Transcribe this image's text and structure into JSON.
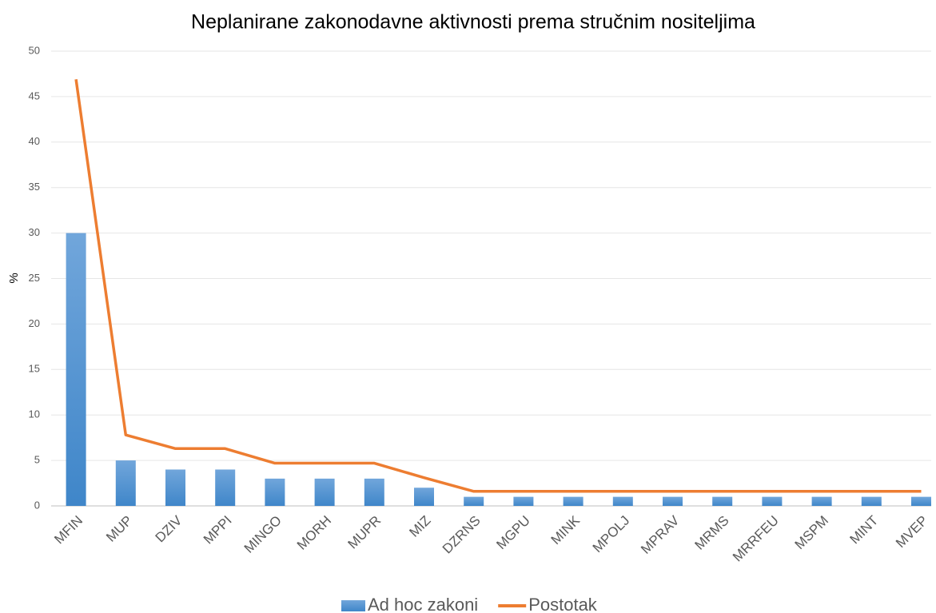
{
  "chart_data": {
    "type": "bar",
    "title": "Neplanirane zakonodavne aktivnosti prema stručnim nositeljima",
    "y_label": "%",
    "categories": [
      "MFIN",
      "MUP",
      "DZIV",
      "MPPI",
      "MINGO",
      "MORH",
      "MUPR",
      "MIZ",
      "DZRNS",
      "MGPU",
      "MINK",
      "MPOLJ",
      "MPRAV",
      "MRMS",
      "MRRFEU",
      "MSPM",
      "MINT",
      "MVEP"
    ],
    "series": [
      {
        "name": "Ad hoc zakoni",
        "type": "bar",
        "color": "#5b9bd5",
        "values": [
          30,
          5,
          4,
          4,
          3,
          3,
          3,
          2,
          1,
          1,
          1,
          1,
          1,
          1,
          1,
          1,
          1,
          1
        ]
      },
      {
        "name": "Postotak",
        "type": "line",
        "color": "#ed7d31",
        "values": [
          46.9,
          7.8,
          6.3,
          6.3,
          4.7,
          4.7,
          4.7,
          3.1,
          1.6,
          1.6,
          1.6,
          1.6,
          1.6,
          1.6,
          1.6,
          1.6,
          1.6,
          1.6
        ]
      }
    ],
    "ylim": [
      0,
      50
    ],
    "yticks": [
      0,
      5,
      10,
      15,
      20,
      25,
      30,
      35,
      40,
      45,
      50
    ],
    "grid": true,
    "legend": "bottom"
  }
}
